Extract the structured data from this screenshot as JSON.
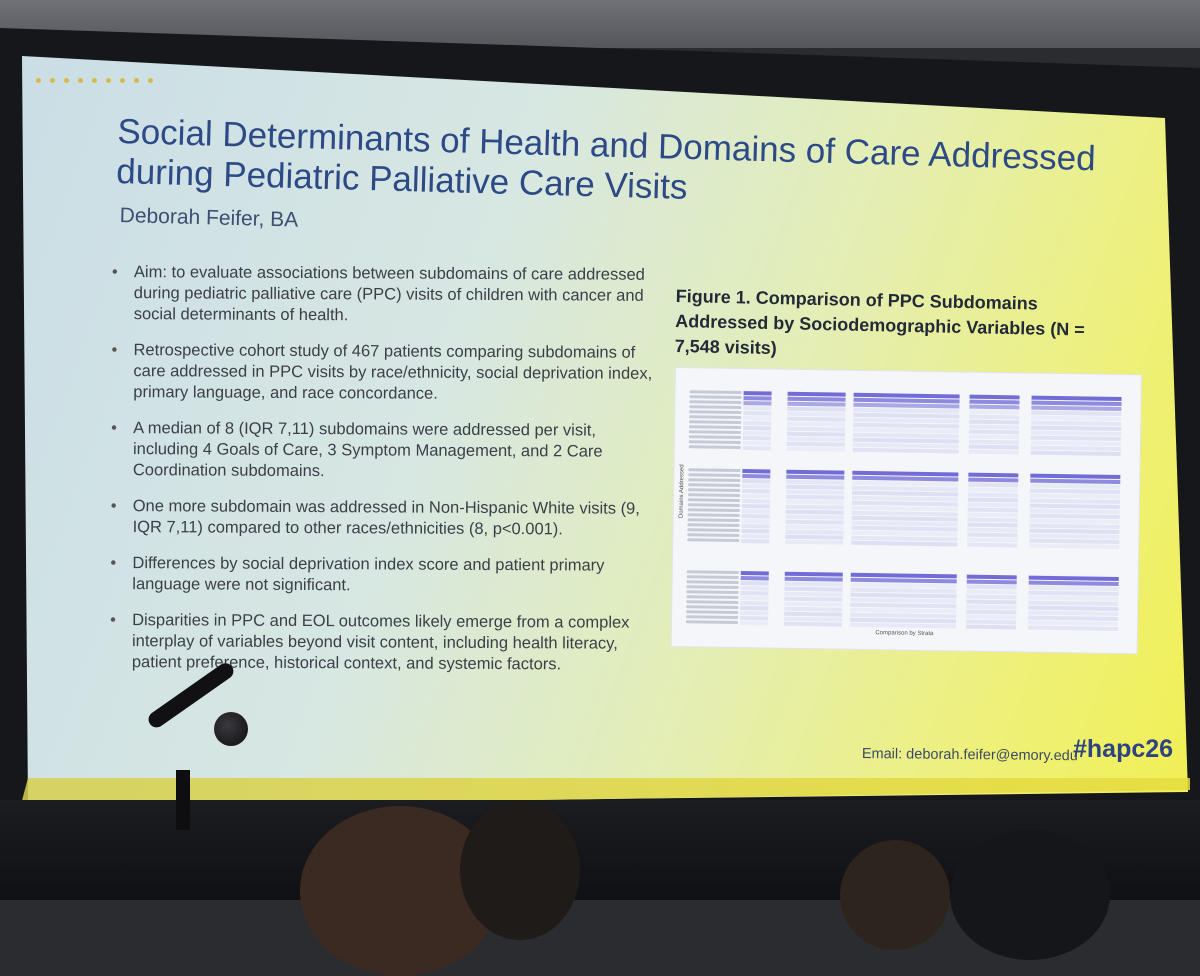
{
  "slide": {
    "title": "Social Determinants of Health and Domains of Care Addressed during Pediatric Palliative Care Visits",
    "author": "Deborah Feifer, BA",
    "bullets": [
      "Aim: to evaluate associations between subdomains of care addressed during pediatric palliative care (PPC) visits of children with cancer and social determinants of health.",
      "Retrospective cohort study of 467 patients comparing subdomains of care addressed in PPC visits by race/ethnicity, social deprivation index, primary language, and race concordance.",
      "A median of 8 (IQR 7,11) subdomains were addressed per visit, including 4 Goals of Care, 3 Symptom Management, and 2 Care Coordination subdomains.",
      "One more subdomain was addressed in Non-Hispanic White visits (9, IQR 7,11) compared to other races/ethnicities (8, p<0.001).",
      "Differences by social deprivation index score and patient primary language were not significant.",
      "Disparities in PPC and EOL outcomes likely emerge from a complex interplay of variables beyond visit content, including health literacy, patient preference, historical context, and systemic factors."
    ],
    "figure_caption": "Figure 1. Comparison of PPC Subdomains Addressed by Sociodemographic Variables (N = 7,548 visits)",
    "heatmap": {
      "y_axis_label": "Domains Addressed",
      "x_axis_label": "Comparison by Strata",
      "accent_color": "#5b55cf"
    },
    "email": "Email: deborah.feifer@emory.edu",
    "hashtag": "#hapc26"
  }
}
